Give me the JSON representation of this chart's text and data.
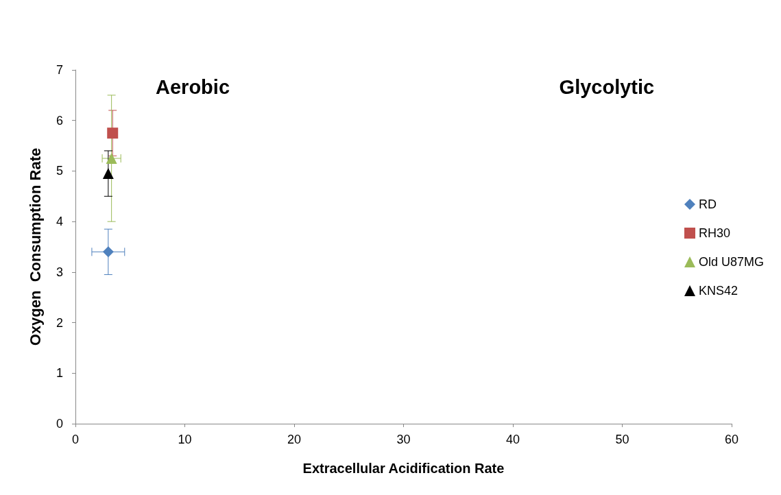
{
  "chart_data": {
    "type": "scatter",
    "xlabel": "Extracellular Acidification Rate",
    "ylabel": "Oxygen  Consumption Rate",
    "annotations": [
      "Aerobic",
      "Glycolytic"
    ],
    "xlim": [
      0,
      60
    ],
    "xticks": [
      0,
      10,
      20,
      30,
      40,
      50,
      60
    ],
    "ylim": [
      0,
      7
    ],
    "yticks": [
      0,
      1,
      2,
      3,
      4,
      5,
      6,
      7
    ],
    "legend": "right",
    "series": [
      {
        "name": "RD",
        "color": "#4f81bd",
        "marker": "diamond",
        "x": [
          3.0
        ],
        "values": [
          3.4
        ],
        "errors": [
          0.45
        ],
        "xerrors": [
          1.5
        ]
      },
      {
        "name": "RH30",
        "color": "#c0504d",
        "marker": "square",
        "x": [
          3.4
        ],
        "values": [
          5.75
        ],
        "errors": [
          0.45
        ]
      },
      {
        "name": "Old U87MG",
        "color": "#9bbb59",
        "marker": "triangle",
        "x": [
          3.3
        ],
        "values": [
          5.25
        ],
        "errors": [
          1.25
        ],
        "xerrors": [
          0.85
        ]
      },
      {
        "name": "KNS42",
        "color": "#000000",
        "marker": "triangle",
        "x": [
          3.0
        ],
        "values": [
          4.95
        ],
        "errors": [
          0.45
        ]
      }
    ]
  }
}
